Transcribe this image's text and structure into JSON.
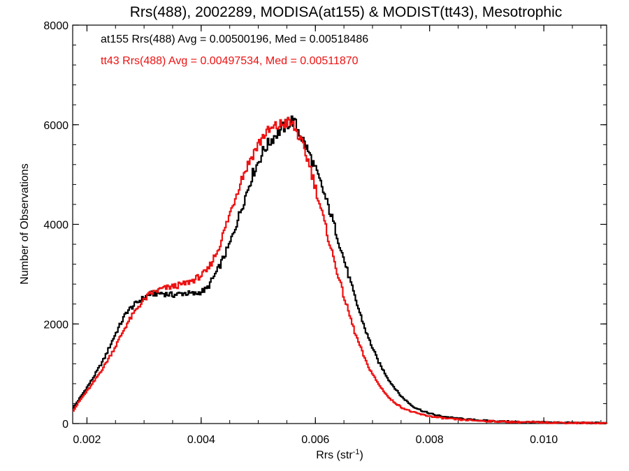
{
  "chart_data": {
    "type": "line",
    "step": true,
    "title": "Rrs(488), 2002289, MODISA(at155) & MODIST(tt43), Mesotrophic",
    "xlabel_main": "Rrs (str",
    "xlabel_sup": "-1",
    "xlabel_tail": ")",
    "ylabel": "Number of Observations",
    "xlim": [
      0.00175,
      0.0111
    ],
    "ylim": [
      0,
      8000
    ],
    "xticks": [
      0.002,
      0.004,
      0.006,
      0.008,
      0.01
    ],
    "xtick_labels": [
      "0.002",
      "0.004",
      "0.006",
      "0.008",
      "0.010"
    ],
    "yticks": [
      0,
      2000,
      4000,
      6000,
      8000
    ],
    "ytick_labels": [
      "0",
      "2000",
      "4000",
      "6000",
      "8000"
    ],
    "grid": false,
    "legend_position": "top-left",
    "series": [
      {
        "name": "at155 Rrs(488) Avg = 0.00500196, Med = 0.00518486",
        "color": "#000000",
        "x": [
          0.00175,
          0.0019,
          0.0021,
          0.0023,
          0.0025,
          0.0027,
          0.0029,
          0.0031,
          0.0033,
          0.0035,
          0.0037,
          0.0039,
          0.0041,
          0.0043,
          0.0045,
          0.0047,
          0.0049,
          0.0051,
          0.0053,
          0.0055,
          0.0056,
          0.0057,
          0.0059,
          0.0061,
          0.0063,
          0.0065,
          0.0067,
          0.0069,
          0.0071,
          0.0073,
          0.0075,
          0.0077,
          0.0079,
          0.0081,
          0.0083,
          0.0085,
          0.0088,
          0.0091,
          0.0095,
          0.01,
          0.0105,
          0.0111
        ],
        "y": [
          300,
          550,
          900,
          1300,
          1800,
          2250,
          2450,
          2600,
          2620,
          2580,
          2620,
          2600,
          2700,
          3100,
          3600,
          4300,
          5000,
          5500,
          5800,
          6000,
          6100,
          5900,
          5400,
          4800,
          4100,
          3300,
          2500,
          1800,
          1250,
          850,
          550,
          350,
          240,
          170,
          130,
          100,
          70,
          50,
          35,
          25,
          15,
          10
        ]
      },
      {
        "name": "tt43 Rrs(488) Avg = 0.00497534, Med = 0.00511870",
        "color": "#ee1111",
        "x": [
          0.00175,
          0.0019,
          0.0021,
          0.0023,
          0.0025,
          0.0027,
          0.0029,
          0.0031,
          0.0033,
          0.0035,
          0.0037,
          0.0039,
          0.0041,
          0.0043,
          0.0045,
          0.0047,
          0.0049,
          0.0051,
          0.0053,
          0.0055,
          0.0056,
          0.0057,
          0.0059,
          0.0061,
          0.0063,
          0.0065,
          0.0067,
          0.0069,
          0.0071,
          0.0073,
          0.0075,
          0.0077,
          0.0079,
          0.0081,
          0.0083,
          0.0085,
          0.0088,
          0.0091,
          0.0095,
          0.01,
          0.0105,
          0.0111
        ],
        "y": [
          250,
          500,
          800,
          1150,
          1550,
          2000,
          2350,
          2600,
          2700,
          2750,
          2800,
          2900,
          3050,
          3500,
          4200,
          4900,
          5400,
          5800,
          5950,
          6050,
          6000,
          5800,
          5200,
          4300,
          3400,
          2550,
          1800,
          1200,
          800,
          500,
          330,
          230,
          170,
          130,
          100,
          80,
          60,
          45,
          30,
          22,
          12,
          8
        ]
      }
    ]
  }
}
